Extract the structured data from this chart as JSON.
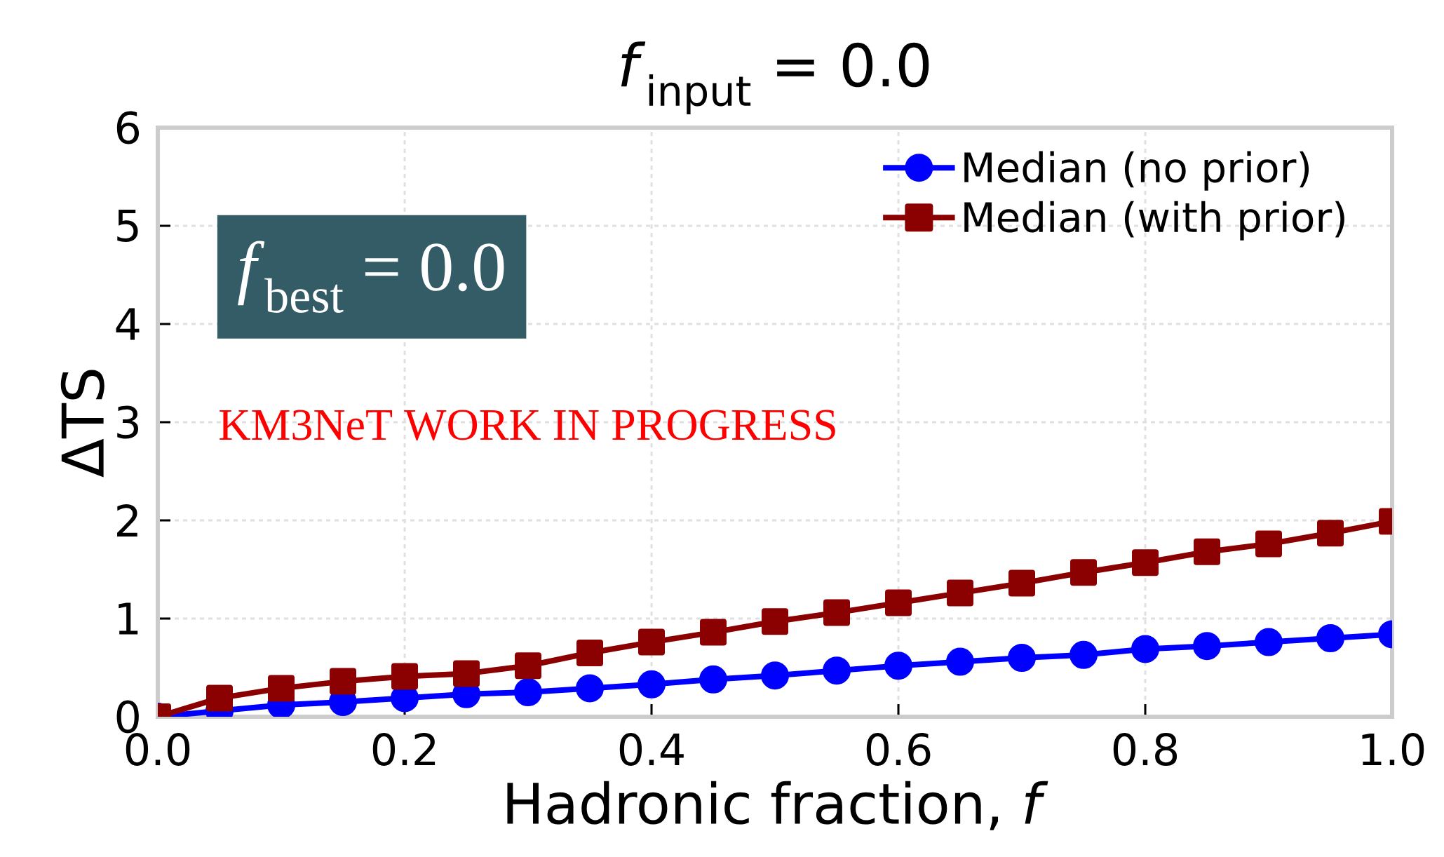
{
  "chart_data": {
    "type": "line",
    "title": "*f*$_{input}$ = 0.0",
    "xlabel": "Hadronic fraction, *f*",
    "ylabel": "ΔTS",
    "x": [
      0.0,
      0.05,
      0.1,
      0.15,
      0.2,
      0.25,
      0.3,
      0.35,
      0.4,
      0.45,
      0.5,
      0.55,
      0.6,
      0.65,
      0.7,
      0.75,
      0.8,
      0.85,
      0.9,
      0.95,
      1.0
    ],
    "series": [
      {
        "name": "Median (no prior)",
        "color": "#0000ff",
        "marker": "circle",
        "values": [
          0,
          0.06,
          0.12,
          0.15,
          0.19,
          0.23,
          0.25,
          0.29,
          0.33,
          0.38,
          0.42,
          0.47,
          0.52,
          0.56,
          0.6,
          0.63,
          0.69,
          0.72,
          0.76,
          0.8,
          0.84
        ]
      },
      {
        "name": "Median (with prior)",
        "color": "#8b0000",
        "marker": "square",
        "values": [
          0,
          0.19,
          0.29,
          0.36,
          0.41,
          0.44,
          0.52,
          0.65,
          0.76,
          0.86,
          0.97,
          1.06,
          1.16,
          1.26,
          1.36,
          1.47,
          1.57,
          1.68,
          1.76,
          1.87,
          1.99
        ]
      }
    ],
    "xlim": [
      0,
      1
    ],
    "ylim": [
      0,
      6
    ],
    "xticks": [
      {
        "value": 0,
        "label": "0.0"
      },
      {
        "value": 0.2,
        "label": "0.2"
      },
      {
        "value": 0.4,
        "label": "0.4"
      },
      {
        "value": 0.6,
        "label": "0.6"
      },
      {
        "value": 0.8,
        "label": "0.8"
      },
      {
        "value": 1,
        "label": "1.0"
      }
    ],
    "yticks": [
      0,
      1,
      2,
      3,
      4,
      5,
      6
    ],
    "grid": true,
    "legend": "top right",
    "line_style": "solid",
    "annotations": [
      "*f*$_{best}$ = 0.0",
      "KM3NeT WORK IN PROGRESS"
    ]
  }
}
